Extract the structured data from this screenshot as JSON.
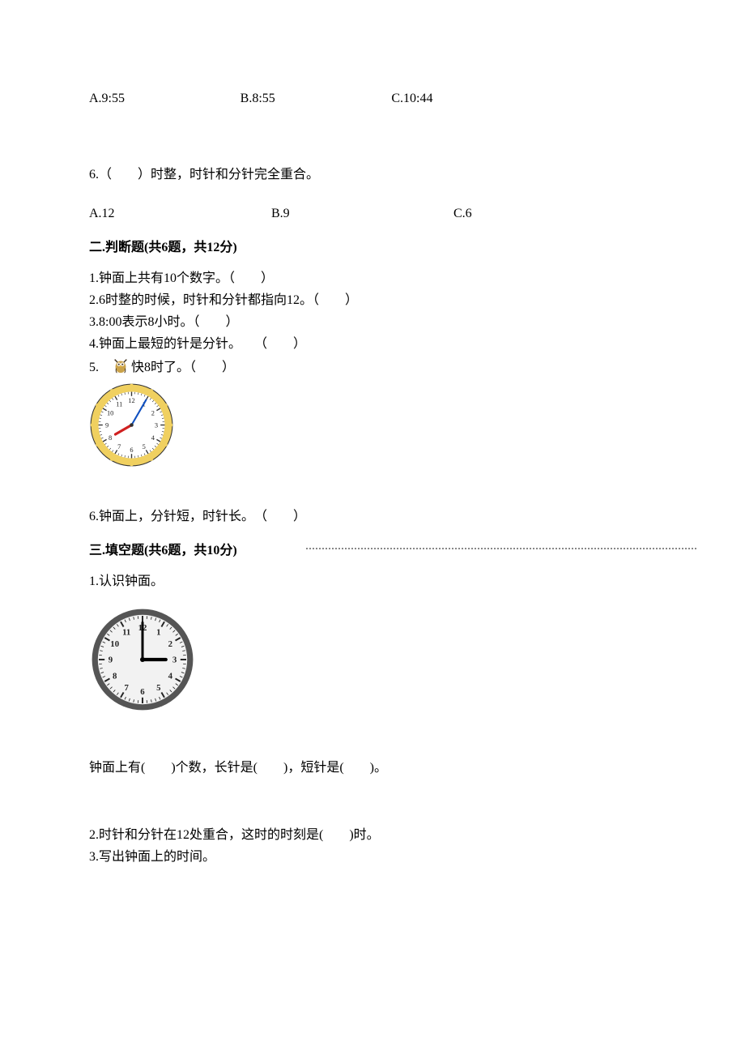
{
  "q5": {
    "optA": "A.9:55",
    "optB": "B.8:55",
    "optC": "C.10:44"
  },
  "q6": {
    "stem": "6.（　　）时整，时针和分针完全重合。",
    "optA": "A.12",
    "optB": "B.9",
    "optC": "C.6"
  },
  "section2": {
    "header": "二.判断题(共6题，共12分)",
    "items": {
      "t1": "1.钟面上共有10个数字。（　　）",
      "t2": "2.6时整的时候，时针和分针都指向12。（　　）",
      "t3": "3.8:00表示8小时。（　　）",
      "t4": "4.钟面上最短的针是分针。　　（　　）",
      "t5a": "5.　",
      "t5b": "快8时了。（　　）",
      "t6": "6.钟面上，分针短，时针长。　（　　）"
    }
  },
  "section3": {
    "header": "三.填空题(共6题，共10分)",
    "q1stem": "1.认识钟面。",
    "q1line": "钟面上有(　　)个数，长针是(　　)，短针是(　　)。",
    "q2": "2.时针和分针在12处重合，这时的时刻是(　　)时。",
    "q3": "3.写出钟面上的时间。"
  },
  "clock1": {
    "face_outer": "#f0d060",
    "face_inner": "#ffffff",
    "tick_color": "#333333",
    "num_color": "#222222",
    "num_fontsize": 8,
    "hour_hand_color": "#d02020",
    "minute_hand_color": "#1050c0",
    "center_dot": "#303030",
    "hour_angle_deg": 240,
    "minute_angle_deg": 30,
    "minute_len": 34,
    "hour_len": 22
  },
  "clock2": {
    "rim_color": "#555555",
    "face_color": "#f2f2f2",
    "tick_color": "#222222",
    "num_color": "#222222",
    "num_fontsize": 9,
    "hand_color": "#000000",
    "hour_angle_deg": 90,
    "minute_angle_deg": 0,
    "minute_len": 38,
    "hour_len": 24
  },
  "owl": {
    "body": "#caa24a",
    "dark": "#3a2a18",
    "beak": "#f0c040"
  }
}
